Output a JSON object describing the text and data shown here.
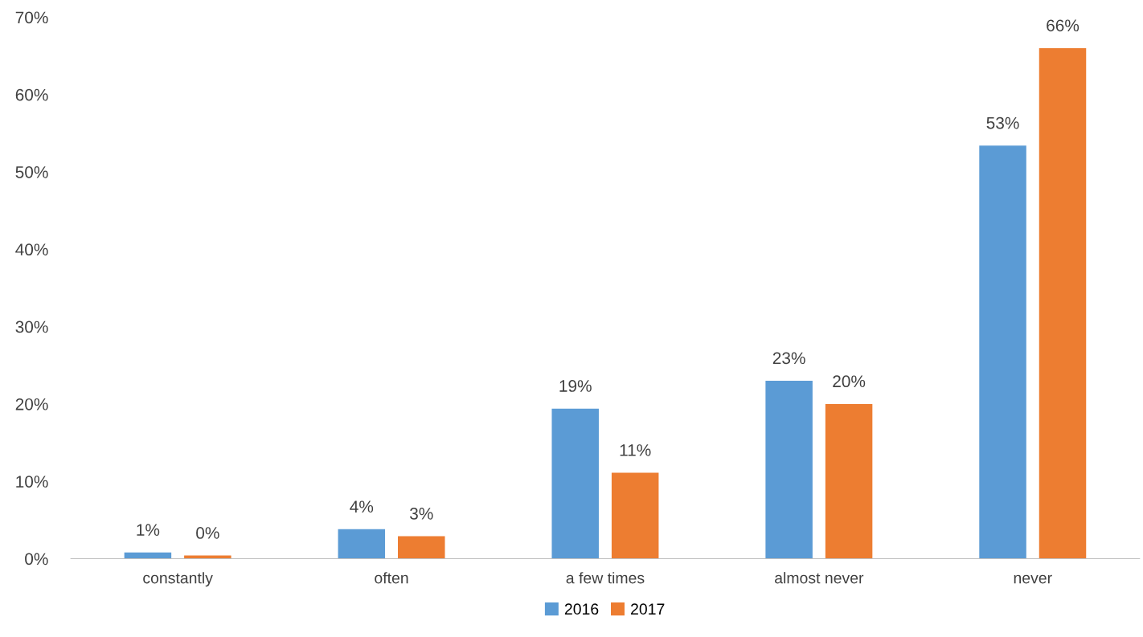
{
  "chart_data": {
    "type": "bar",
    "categories": [
      "constantly",
      "often",
      "a few times",
      "almost never",
      "never"
    ],
    "series": [
      {
        "name": "2016",
        "color": "#5b9bd5",
        "values": [
          0.8,
          3.8,
          19.4,
          23.0,
          53.4
        ],
        "value_labels": [
          "1%",
          "4%",
          "19%",
          "23%",
          "53%"
        ]
      },
      {
        "name": "2017",
        "color": "#ed7d31",
        "values": [
          0.4,
          2.9,
          11.1,
          20.0,
          66.0
        ],
        "value_labels": [
          "0%",
          "3%",
          "11%",
          "20%",
          "66%"
        ]
      }
    ],
    "ylim": [
      0,
      70
    ],
    "yticks": [
      {
        "value": 0,
        "label": "0%"
      },
      {
        "value": 10,
        "label": "10%"
      },
      {
        "value": 20,
        "label": "20%"
      },
      {
        "value": 30,
        "label": "30%"
      },
      {
        "value": 40,
        "label": "40%"
      },
      {
        "value": 50,
        "label": "50%"
      },
      {
        "value": 60,
        "label": "60%"
      },
      {
        "value": 70,
        "label": "70%"
      }
    ],
    "grid": false,
    "legend": "bottom"
  }
}
